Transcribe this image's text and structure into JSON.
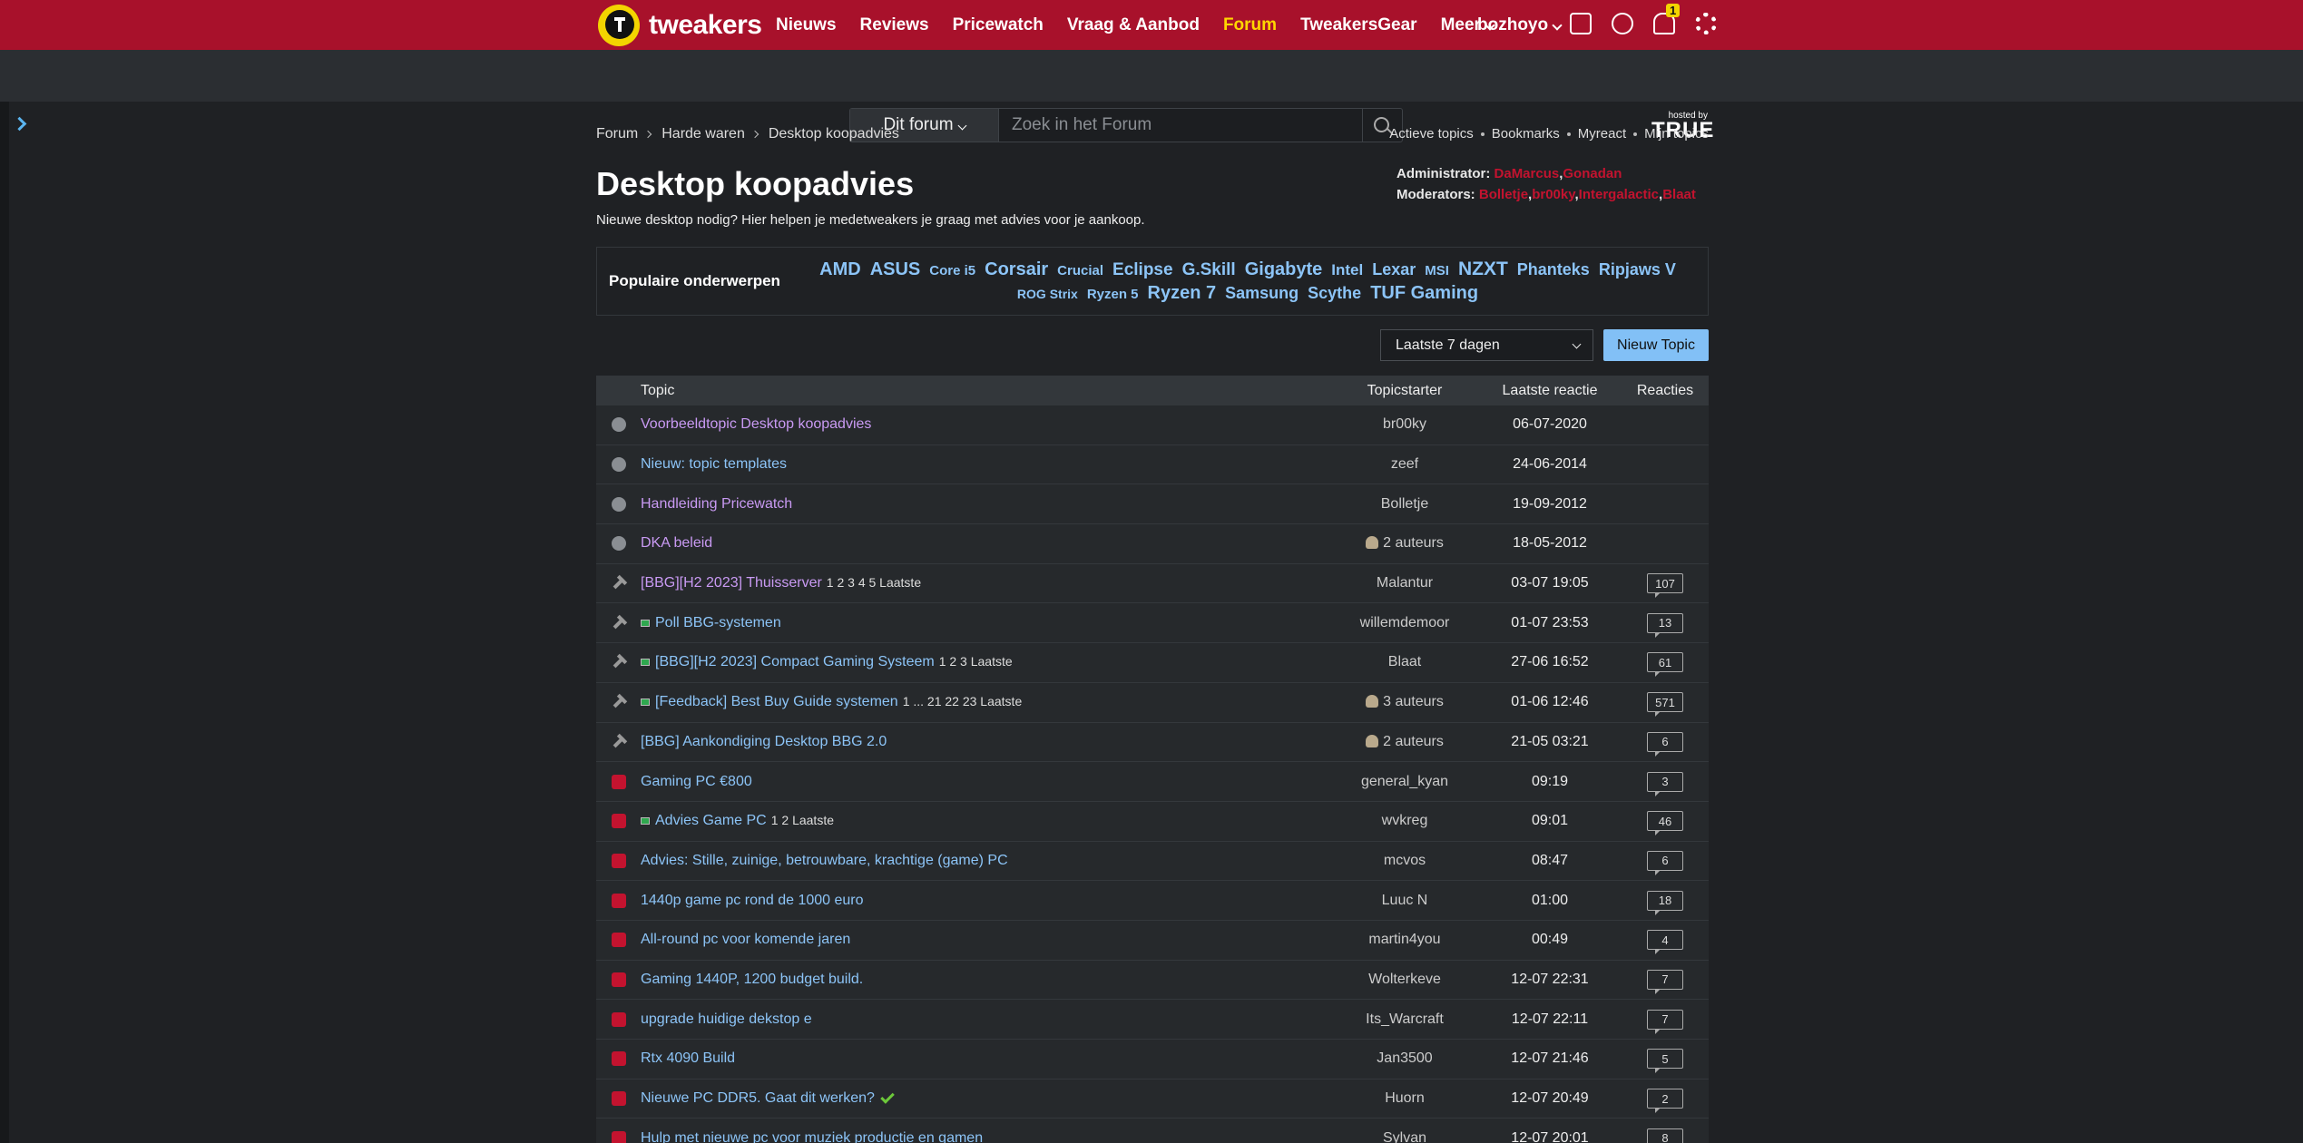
{
  "header": {
    "logo": "tweakers",
    "nav": [
      "Nieuws",
      "Reviews",
      "Pricewatch",
      "Vraag & Aanbod",
      "Forum",
      "TweakersGear",
      "Meer"
    ],
    "user": "bozhoyo",
    "notifications": "1"
  },
  "search": {
    "scope": "Dit forum",
    "placeholder": "Zoek in het Forum",
    "hosted_by": "hosted by",
    "host": "TRUE"
  },
  "breadcrumb": [
    "Forum",
    "Harde waren",
    "Desktop koopadvies"
  ],
  "quick_links": [
    "Actieve topics",
    "Bookmarks",
    "Myreact",
    "Mijn topics"
  ],
  "title": "Desktop koopadvies",
  "description": "Nieuwe desktop nodig? Hier helpen je medetweakers je graag met advies voor je aankoop.",
  "staff": {
    "admin_label": "Administrator:",
    "admins": [
      "DaMarcus",
      "Gonadan"
    ],
    "mod_label": "Moderators:",
    "mods": [
      "Bolletje",
      "br00ky",
      "Intergalactic",
      "Blaat"
    ],
    "separator": ","
  },
  "popular": {
    "label": "Populaire onderwerpen",
    "tags": [
      "AMD",
      "ASUS",
      "Core i5",
      "Corsair",
      "Crucial",
      "Eclipse",
      "G.Skill",
      "Gigabyte",
      "Intel",
      "Lexar",
      "MSI",
      "NZXT",
      "Phanteks",
      "Ripjaws V",
      "ROG Strix",
      "Ryzen 5",
      "Ryzen 7",
      "Samsung",
      "Scythe",
      "TUF Gaming"
    ]
  },
  "filter": "Laatste 7 dagen",
  "new_topic": "Nieuw Topic",
  "table": {
    "headers": [
      "Topic",
      "Topicstarter",
      "Laatste reactie",
      "Reacties"
    ],
    "rows": [
      {
        "title": "Voorbeeldtopic Desktop koopadvies",
        "starter": "br00ky",
        "last": "06-07-2020"
      },
      {
        "title": "Nieuw: topic templates",
        "starter": "zeef",
        "last": "24-06-2014"
      },
      {
        "title": "Handleiding Pricewatch",
        "starter": "Bolletje",
        "last": "19-09-2012"
      },
      {
        "title": "DKA beleid",
        "starter": "2 auteurs",
        "last": "18-05-2012"
      },
      {
        "title": "[BBG][H2 2023] Thuisserver",
        "pages": "1 2 3 4 5 Laatste",
        "starter": "Malantur",
        "last": "03-07 19:05",
        "replies": 107
      },
      {
        "title": "Poll BBG-systemen",
        "starter": "willemdemoor",
        "last": "01-07 23:53",
        "replies": 13
      },
      {
        "title": "[BBG][H2 2023] Compact Gaming Systeem",
        "pages": "1 2 3 Laatste",
        "starter": "Blaat",
        "last": "27-06 16:52",
        "replies": 61
      },
      {
        "title": "[Feedback] Best Buy Guide systemen",
        "pages": "1 ... 21 22 23 Laatste",
        "starter": "3 auteurs",
        "last": "01-06 12:46",
        "replies": 571
      },
      {
        "title": "[BBG] Aankondiging Desktop BBG 2.0",
        "starter": "2 auteurs",
        "last": "21-05 03:21",
        "replies": 6
      },
      {
        "title": "Gaming PC €800",
        "starter": "general_kyan",
        "last": "09:19",
        "replies": 3
      },
      {
        "title": "Advies Game PC",
        "pages": "1 2 Laatste",
        "starter": "wvkreg",
        "last": "09:01",
        "replies": 46
      },
      {
        "title": "Advies: Stille, zuinige, betrouwbare, krachtige (game) PC",
        "starter": "mcvos",
        "last": "08:47",
        "replies": 6
      },
      {
        "title": "1440p game pc rond de 1000 euro",
        "starter": "Luuc N",
        "last": "01:00",
        "replies": 18
      },
      {
        "title": "All-round pc voor komende jaren",
        "starter": "martin4you",
        "last": "00:49",
        "replies": 4
      },
      {
        "title": "Gaming 1440P, 1200 budget build.",
        "starter": "Wolterkeve",
        "last": "12-07 22:31",
        "replies": 7
      },
      {
        "title": "upgrade huidige dekstop e",
        "starter": "Its_Warcraft",
        "last": "12-07 22:11",
        "replies": 7
      },
      {
        "title": "Rtx 4090 Build",
        "starter": "Jan3500",
        "last": "12-07 21:46",
        "replies": 5
      },
      {
        "title": "Nieuwe PC DDR5. Gaat dit werken?",
        "starter": "Huorn",
        "last": "12-07 20:49",
        "replies": 2
      },
      {
        "title": "Hulp met nieuwe pc voor muziek productie en gamen",
        "starter": "Sylvan",
        "last": "12-07 20:01",
        "replies": 8
      }
    ]
  }
}
